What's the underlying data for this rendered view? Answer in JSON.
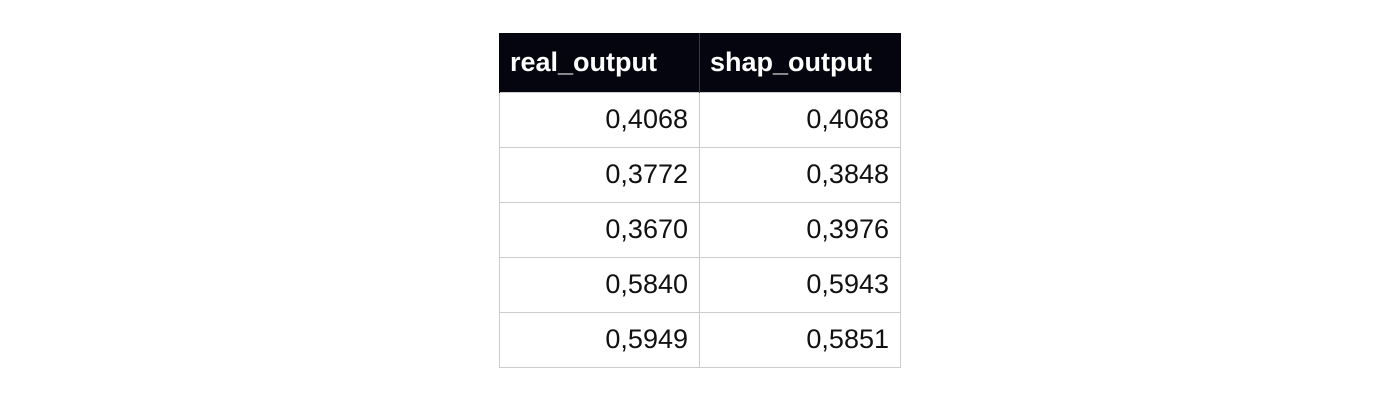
{
  "table": {
    "headers": [
      "real_output",
      "shap_output"
    ],
    "rows": [
      [
        "0,4068",
        "0,4068"
      ],
      [
        "0,3772",
        "0,3848"
      ],
      [
        "0,3670",
        "0,3976"
      ],
      [
        "0,5840",
        "0,5943"
      ],
      [
        "0,5949",
        "0,5851"
      ]
    ]
  }
}
